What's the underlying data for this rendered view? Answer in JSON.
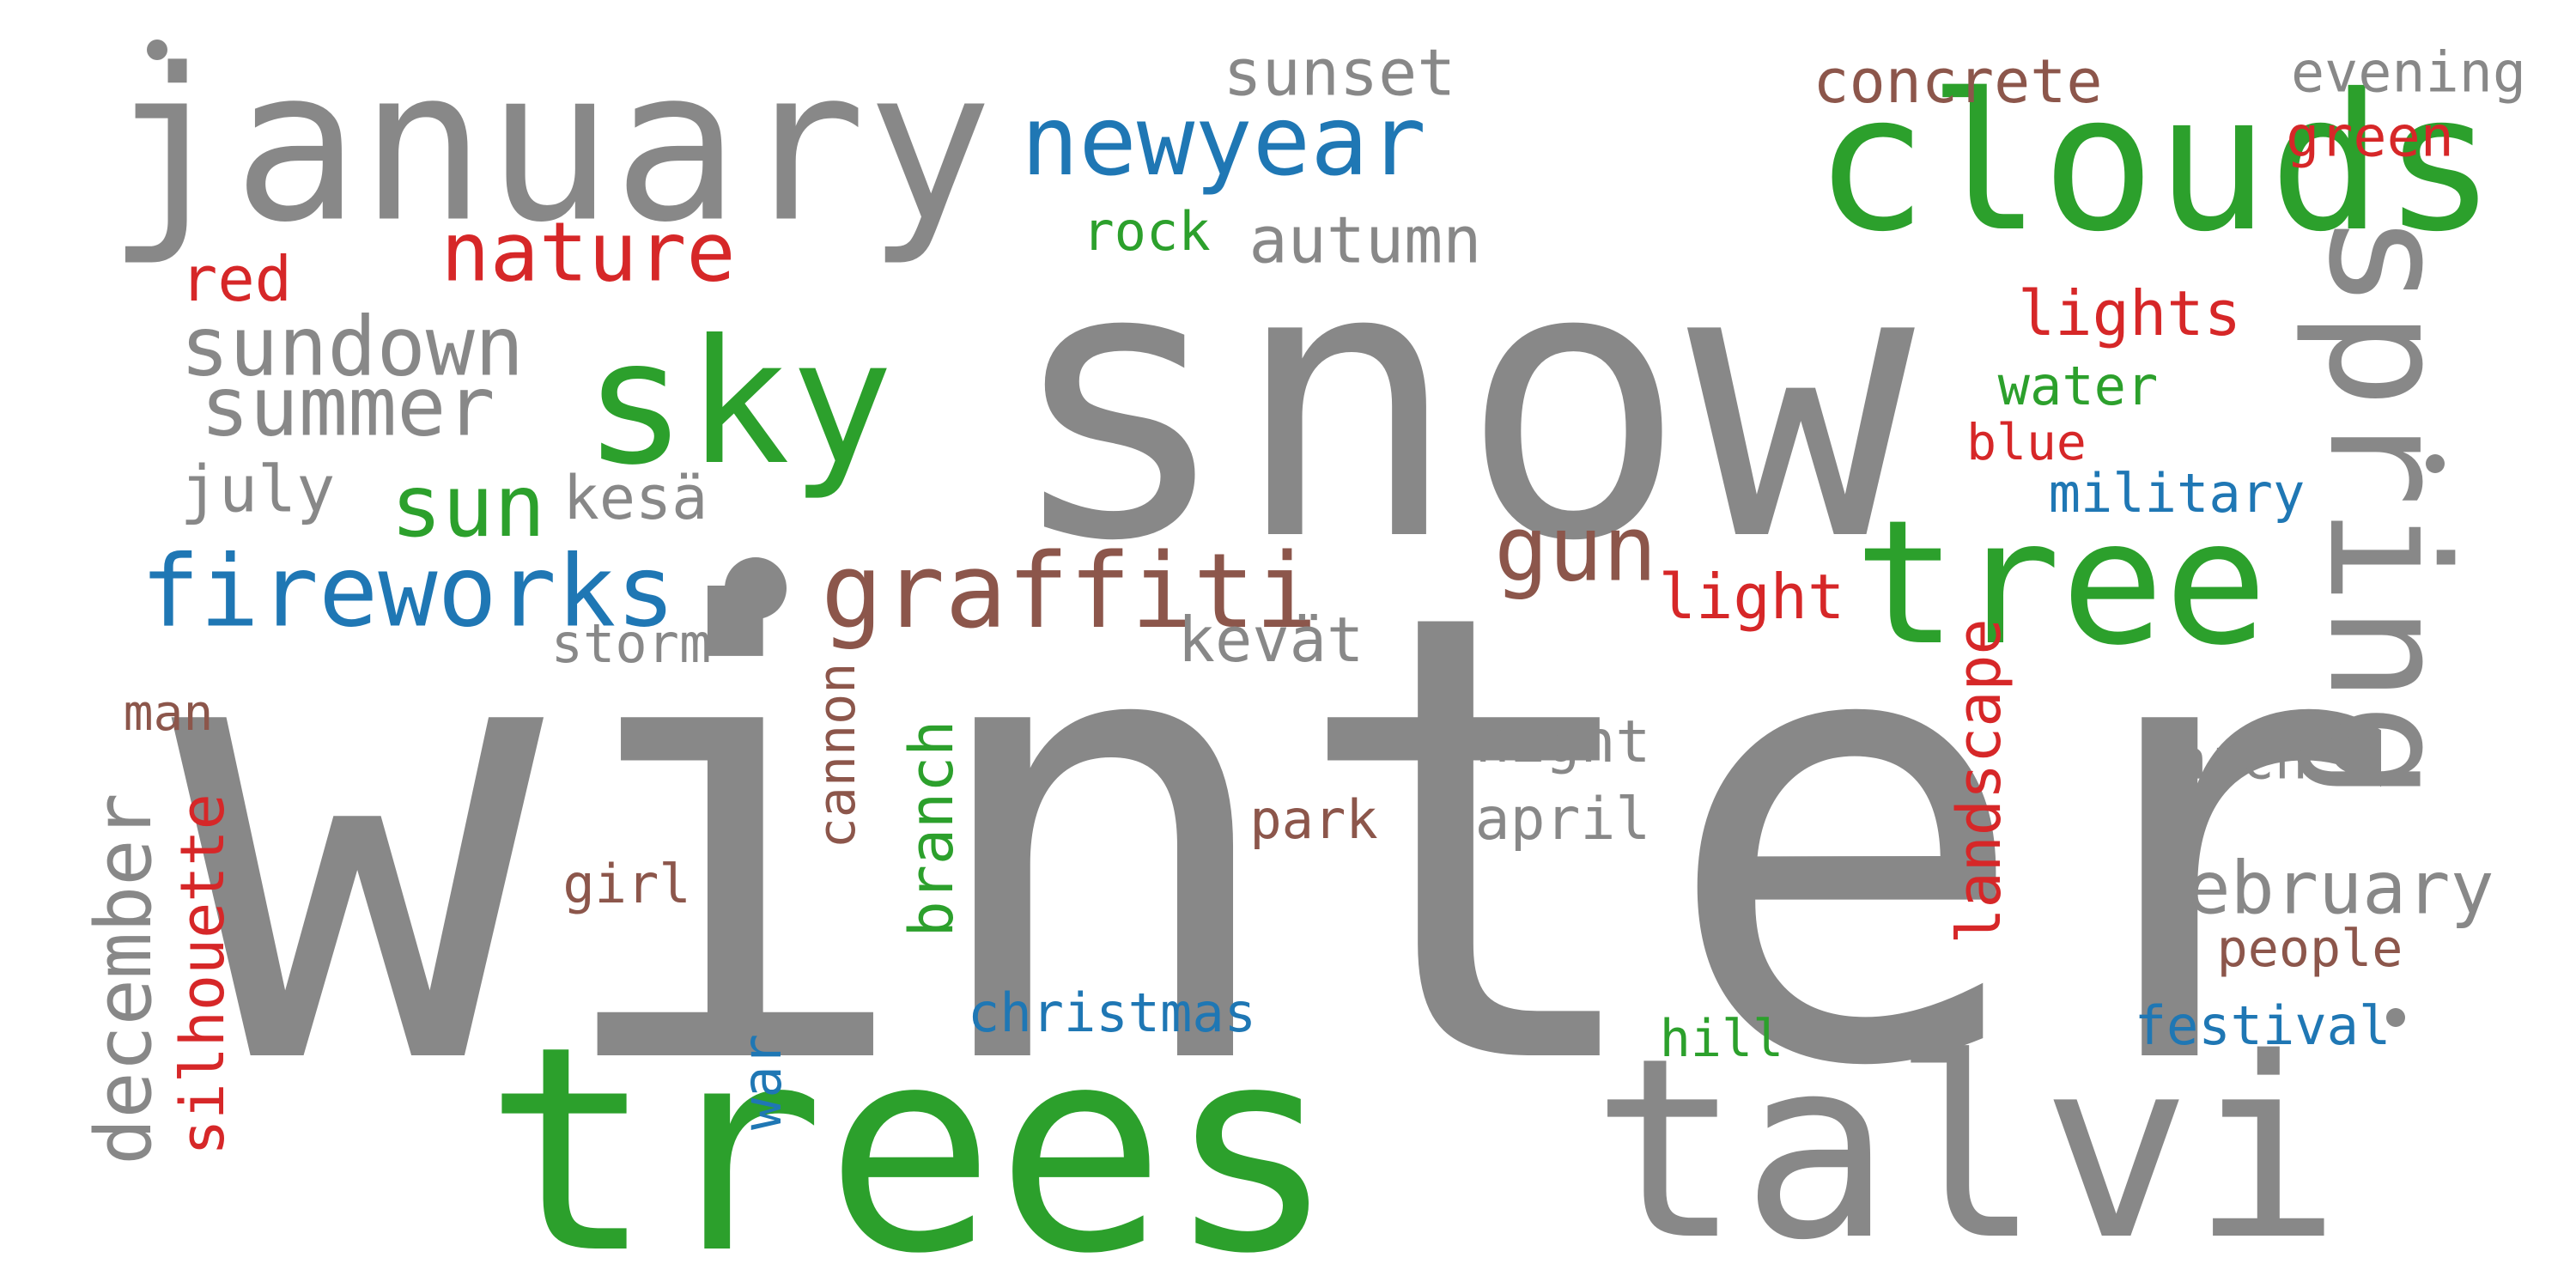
{
  "cloud": {
    "words": [
      {
        "id": "winter",
        "text": "winter",
        "color": "#888888"
      },
      {
        "id": "snow",
        "text": "snow",
        "color": "#888888"
      },
      {
        "id": "trees",
        "text": "trees",
        "color": "#2ca02c"
      },
      {
        "id": "talvi",
        "text": "talvi",
        "color": "#888888"
      },
      {
        "id": "january",
        "text": "january",
        "color": "#888888"
      },
      {
        "id": "clouds",
        "text": "clouds",
        "color": "#2ca02c"
      },
      {
        "id": "tree",
        "text": "tree",
        "color": "#2ca02c"
      },
      {
        "id": "sky",
        "text": "sky",
        "color": "#2ca02c"
      },
      {
        "id": "spring",
        "text": "spring",
        "color": "#888888"
      },
      {
        "id": "graffiti",
        "text": "graffiti",
        "color": "#8c564b"
      },
      {
        "id": "fireworks",
        "text": "fireworks",
        "color": "#1f77b4"
      },
      {
        "id": "newyear",
        "text": "newyear",
        "color": "#1f77b4"
      },
      {
        "id": "nature",
        "text": "nature",
        "color": "#d62728"
      },
      {
        "id": "sundown",
        "text": "sundown",
        "color": "#888888"
      },
      {
        "id": "summer",
        "text": "summer",
        "color": "#888888"
      },
      {
        "id": "sun",
        "text": "sun",
        "color": "#2ca02c"
      },
      {
        "id": "gun",
        "text": "gun",
        "color": "#8c564b"
      },
      {
        "id": "concrete",
        "text": "concrete",
        "color": "#8c564b"
      },
      {
        "id": "sunset",
        "text": "sunset",
        "color": "#888888"
      },
      {
        "id": "evening",
        "text": "evening",
        "color": "#888888"
      },
      {
        "id": "green",
        "text": "green",
        "color": "#d62728"
      },
      {
        "id": "autumn",
        "text": "autumn",
        "color": "#888888"
      },
      {
        "id": "rock",
        "text": "rock",
        "color": "#2ca02c"
      },
      {
        "id": "red",
        "text": "red",
        "color": "#d62728"
      },
      {
        "id": "lights",
        "text": "lights",
        "color": "#d62728"
      },
      {
        "id": "water",
        "text": "water",
        "color": "#2ca02c"
      },
      {
        "id": "blue",
        "text": "blue",
        "color": "#d62728"
      },
      {
        "id": "military",
        "text": "military",
        "color": "#1f77b4"
      },
      {
        "id": "july",
        "text": "july",
        "color": "#888888"
      },
      {
        "id": "kesa",
        "text": "kesä",
        "color": "#888888"
      },
      {
        "id": "light",
        "text": "light",
        "color": "#d62728"
      },
      {
        "id": "storm",
        "text": "storm",
        "color": "#888888"
      },
      {
        "id": "kevat",
        "text": "kevät",
        "color": "#888888"
      },
      {
        "id": "man",
        "text": "man",
        "color": "#8c564b"
      },
      {
        "id": "night",
        "text": "night",
        "color": "#888888"
      },
      {
        "id": "march",
        "text": "march",
        "color": "#888888"
      },
      {
        "id": "park",
        "text": "park",
        "color": "#8c564b"
      },
      {
        "id": "april",
        "text": "april",
        "color": "#888888"
      },
      {
        "id": "february",
        "text": "february",
        "color": "#888888"
      },
      {
        "id": "girl",
        "text": "girl",
        "color": "#8c564b"
      },
      {
        "id": "people",
        "text": "people",
        "color": "#8c564b"
      },
      {
        "id": "christmas",
        "text": "christmas",
        "color": "#1f77b4"
      },
      {
        "id": "festival",
        "text": "festival",
        "color": "#1f77b4"
      },
      {
        "id": "hill",
        "text": "hill",
        "color": "#2ca02c"
      },
      {
        "id": "cannon",
        "text": "cannon",
        "color": "#8c564b"
      },
      {
        "id": "branch",
        "text": "branch",
        "color": "#2ca02c"
      },
      {
        "id": "landscape",
        "text": "landscape",
        "color": "#d62728"
      },
      {
        "id": "december",
        "text": "december",
        "color": "#888888"
      },
      {
        "id": "silhouette",
        "text": "silhouette",
        "color": "#d62728"
      },
      {
        "id": "war",
        "text": "war",
        "color": "#1f77b4"
      }
    ]
  },
  "colors": {
    "background": "#ffffff",
    "gray": "#888888",
    "green": "#2ca02c",
    "blue": "#1f77b4",
    "red": "#d62728",
    "brown": "#8c564b"
  }
}
